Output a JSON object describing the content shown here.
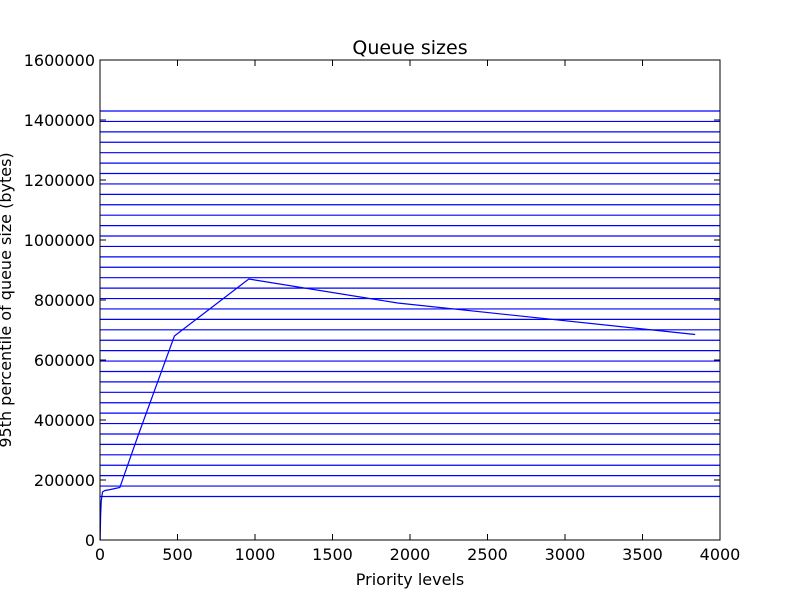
{
  "chart_data": {
    "type": "line",
    "title": "Queue sizes",
    "xlabel": "Priority levels",
    "ylabel": "95th percentile of queue size (bytes)",
    "xlim": [
      0,
      4000
    ],
    "ylim": [
      0,
      1600000
    ],
    "x_ticks": [
      "0",
      "500",
      "1000",
      "1500",
      "2000",
      "2500",
      "3000",
      "3500",
      "4000"
    ],
    "y_ticks": [
      "0",
      "200000",
      "400000",
      "600000",
      "800000",
      "1000000",
      "1200000",
      "1400000",
      "1600000"
    ],
    "grid": false,
    "line_color": "#0000ff",
    "series": [
      {
        "x": [
          1,
          2,
          4,
          8,
          16,
          32,
          64,
          128,
          240,
          480,
          960,
          1920,
          3840
        ],
        "values": [
          0,
          30000,
          80000,
          130000,
          160000,
          165000,
          168000,
          175000,
          340000,
          680000,
          870000,
          790000,
          685000
        ]
      }
    ],
    "horizontal_lines": {
      "from": 145000,
      "to": 1430000,
      "count": 38
    }
  }
}
